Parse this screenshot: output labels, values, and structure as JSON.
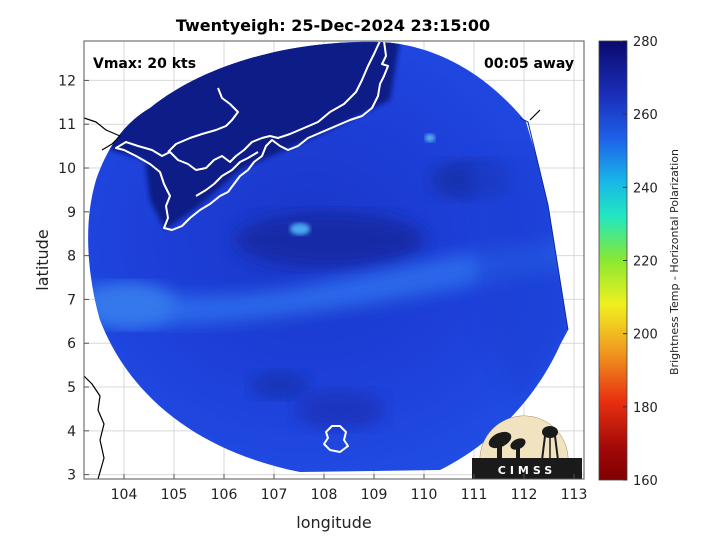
{
  "map": {
    "title": "Twentyeigh: 25-Dec-2024 23:15:00",
    "vmax_label": "Vmax: 20 kts",
    "time_offset_label": "00:05 away",
    "x_axis_label": "longitude",
    "y_axis_label": "latitude",
    "x_ticks": [
      "104",
      "105",
      "106",
      "107",
      "108",
      "109",
      "110",
      "111",
      "112",
      "113"
    ],
    "y_ticks": [
      "3",
      "4",
      "5",
      "6",
      "7",
      "8",
      "9",
      "10",
      "11",
      "12"
    ],
    "lon_range": [
      103.2,
      113.2
    ],
    "lat_range": [
      2.9,
      12.9
    ],
    "grid": true,
    "logo_text": "CIMSS"
  },
  "colorbar": {
    "label": "Brightness Temp - Horizontal Polarization",
    "ticks": [
      "280",
      "260",
      "240",
      "220",
      "200",
      "180",
      "160"
    ],
    "range": [
      160,
      280
    ],
    "colors": [
      "#0a0a6e",
      "#1a2db8",
      "#1e5fe8",
      "#18b6e8",
      "#22e8c0",
      "#8ae830",
      "#f0f020",
      "#f0a020",
      "#e83010",
      "#a00808",
      "#800000"
    ]
  },
  "colors": {
    "scan_deep": "#0a1a7a",
    "scan_main": "#1e3ed8",
    "scan_light": "#2a6ae8",
    "coastline": "#ffffff",
    "outside_coast": "#000000"
  }
}
